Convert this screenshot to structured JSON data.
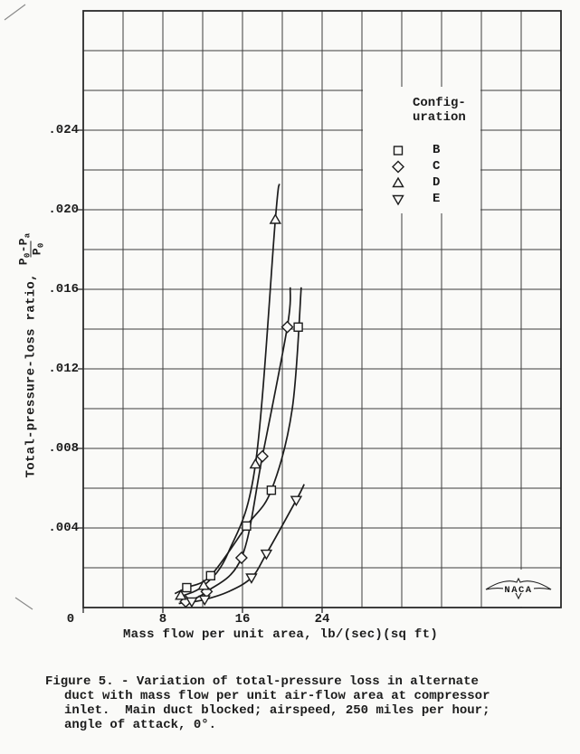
{
  "page": {
    "background": "#fafaf8",
    "ink": "#1c1c1c",
    "grid_color": "#3c3c3c"
  },
  "figure": {
    "caption_lines": [
      "Figure 5. - Variation of total-pressure loss in alternate",
      "duct with mass flow per unit air-flow area at compressor",
      "inlet.  Main duct blocked; airspeed, 250 miles per hour;",
      "angle of attack, 0°."
    ]
  },
  "y_axis": {
    "title": "Total-pressure-loss ratio,",
    "frac": {
      "num_base1": "P",
      "num_sub1": "0",
      "num_base2": "-P",
      "num_sub2": "a",
      "den_base": "P",
      "den_sub": "0"
    }
  },
  "x_axis": {
    "title": "Mass flow per unit area, lb/(sec)(sq ft)"
  },
  "legend": {
    "title_line1": "Config-",
    "title_line2": "uration"
  },
  "naca": {
    "label": "NACA"
  },
  "chart_data": {
    "type": "scatter",
    "title": "",
    "xlabel": "Mass flow per unit area, lb/(sec)(sq ft)",
    "ylabel": "Total-pressure-loss ratio, (P0-Pa)/P0",
    "xlim": [
      0,
      48
    ],
    "ylim": [
      0,
      0.03
    ],
    "x_grid_step": 4,
    "y_grid_step": 0.002,
    "grid": true,
    "legend_position": "upper-right-inside",
    "x_ticks": [
      {
        "value": 0,
        "label": "0"
      },
      {
        "value": 8,
        "label": "8"
      },
      {
        "value": 16,
        "label": "16"
      },
      {
        "value": 24,
        "label": "24"
      }
    ],
    "y_ticks": [
      {
        "value": 0.004,
        "label": ".004"
      },
      {
        "value": 0.008,
        "label": ".008"
      },
      {
        "value": 0.012,
        "label": ".012"
      },
      {
        "value": 0.016,
        "label": ".016"
      },
      {
        "value": 0.02,
        "label": ".020"
      },
      {
        "value": 0.024,
        "label": ".024"
      }
    ],
    "series": [
      {
        "name": "B",
        "marker": "square",
        "points": [
          [
            10.4,
            0.001
          ],
          [
            12.8,
            0.0016
          ],
          [
            16.4,
            0.0041
          ],
          [
            18.9,
            0.0059
          ],
          [
            21.6,
            0.0141
          ]
        ],
        "curve": [
          [
            9.2,
            0.0007
          ],
          [
            10.4,
            0.001
          ],
          [
            12.8,
            0.0016
          ],
          [
            16.4,
            0.0041
          ],
          [
            18.9,
            0.0059
          ],
          [
            21.0,
            0.01
          ],
          [
            21.9,
            0.0161
          ]
        ]
      },
      {
        "name": "C",
        "marker": "diamond",
        "points": [
          [
            10.3,
            0.0003
          ],
          [
            12.4,
            0.0008
          ],
          [
            15.9,
            0.0025
          ],
          [
            18.0,
            0.0076
          ],
          [
            20.5,
            0.0141
          ]
        ],
        "curve": [
          [
            9.6,
            0.0002
          ],
          [
            10.3,
            0.0003
          ],
          [
            12.4,
            0.0008
          ],
          [
            15.9,
            0.0025
          ],
          [
            18.0,
            0.0076
          ],
          [
            20.5,
            0.0141
          ],
          [
            20.8,
            0.0161
          ]
        ]
      },
      {
        "name": "D",
        "marker": "triangle-up",
        "points": [
          [
            9.8,
            0.0006
          ],
          [
            12.1,
            0.0011
          ],
          [
            17.3,
            0.0072
          ],
          [
            19.3,
            0.0195
          ]
        ],
        "curve": [
          [
            9.4,
            0.0005
          ],
          [
            12.1,
            0.0011
          ],
          [
            14.6,
            0.0028
          ],
          [
            17.3,
            0.0072
          ],
          [
            19.3,
            0.0195
          ],
          [
            19.7,
            0.0213
          ]
        ]
      },
      {
        "name": "E",
        "marker": "triangle-down",
        "points": [
          [
            10.9,
            0.0003
          ],
          [
            12.2,
            0.0004
          ],
          [
            16.9,
            0.0015
          ],
          [
            18.4,
            0.0027
          ],
          [
            21.4,
            0.0054
          ]
        ],
        "curve": [
          [
            10.0,
            0.0002
          ],
          [
            12.2,
            0.0004
          ],
          [
            14.6,
            0.0008
          ],
          [
            16.9,
            0.0015
          ],
          [
            18.4,
            0.0027
          ],
          [
            21.4,
            0.0054
          ],
          [
            22.2,
            0.0062
          ]
        ]
      }
    ]
  }
}
